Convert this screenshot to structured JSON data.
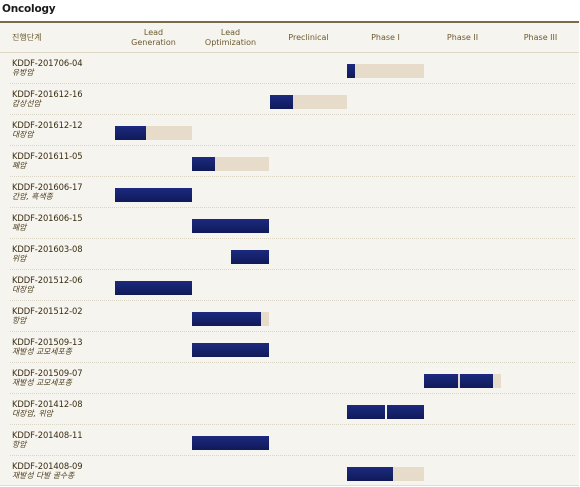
{
  "section_title": "Oncology",
  "header": {
    "stage_label": "진행단계",
    "phases": [
      "Lead\nGeneration",
      "Lead\nOptimization",
      "Preclinical",
      "Phase I",
      "Phase II",
      "Phase III"
    ]
  },
  "colors": {
    "progress": "#131f68",
    "remaining": "#e6dcc9",
    "header_text": "#6b5a2e",
    "code_text": "#3a2c12"
  },
  "chart_data": {
    "type": "bar",
    "orientation": "horizontal-gantt",
    "stages": [
      "Lead Generation",
      "Lead Optimization",
      "Preclinical",
      "Phase I",
      "Phase II",
      "Phase III"
    ],
    "rows": [
      {
        "code": "KDDF-201706-04",
        "indication": "유방암",
        "stage": 3,
        "progress": 0.1,
        "segments": 1
      },
      {
        "code": "KDDF-201612-16",
        "indication": "갑상선암",
        "stage": 2,
        "progress": 0.3,
        "segments": 1
      },
      {
        "code": "KDDF-201612-12",
        "indication": "대장암",
        "stage": 0,
        "progress": 0.4,
        "segments": 1
      },
      {
        "code": "KDDF-201611-05",
        "indication": "폐암",
        "stage": 1,
        "progress": 0.3,
        "segments": 1
      },
      {
        "code": "KDDF-201606-17",
        "indication": "간암, 흑색종",
        "stage": 0,
        "progress": 1.0,
        "segments": 1
      },
      {
        "code": "KDDF-201606-15",
        "indication": "폐암",
        "stage": 1,
        "progress": 1.0,
        "segments": 1
      },
      {
        "code": "KDDF-201603-08",
        "indication": "위암",
        "stage": 1,
        "progress": 1.0,
        "start": 0.5,
        "segments": 1
      },
      {
        "code": "KDDF-201512-06",
        "indication": "대장암",
        "stage": 0,
        "progress": 1.0,
        "segments": 1
      },
      {
        "code": "KDDF-201512-02",
        "indication": "항암",
        "stage": 1,
        "progress": 0.9,
        "segments": 1
      },
      {
        "code": "KDDF-201509-13",
        "indication": "재발성 교모세포종",
        "stage": 1,
        "progress": 1.0,
        "segments": 1
      },
      {
        "code": "KDDF-201509-07",
        "indication": "재발성 교모세포종",
        "stage": 4,
        "progress": 0.9,
        "segments": 2
      },
      {
        "code": "KDDF-201412-08",
        "indication": "대장암, 위암",
        "stage": 3,
        "progress": 1.0,
        "segments": 2
      },
      {
        "code": "KDDF-201408-11",
        "indication": "항암",
        "stage": 1,
        "progress": 1.0,
        "segments": 1
      },
      {
        "code": "KDDF-201408-09",
        "indication": "재발성 다발 골수종",
        "stage": 3,
        "progress": 0.6,
        "segments": 1
      }
    ]
  }
}
